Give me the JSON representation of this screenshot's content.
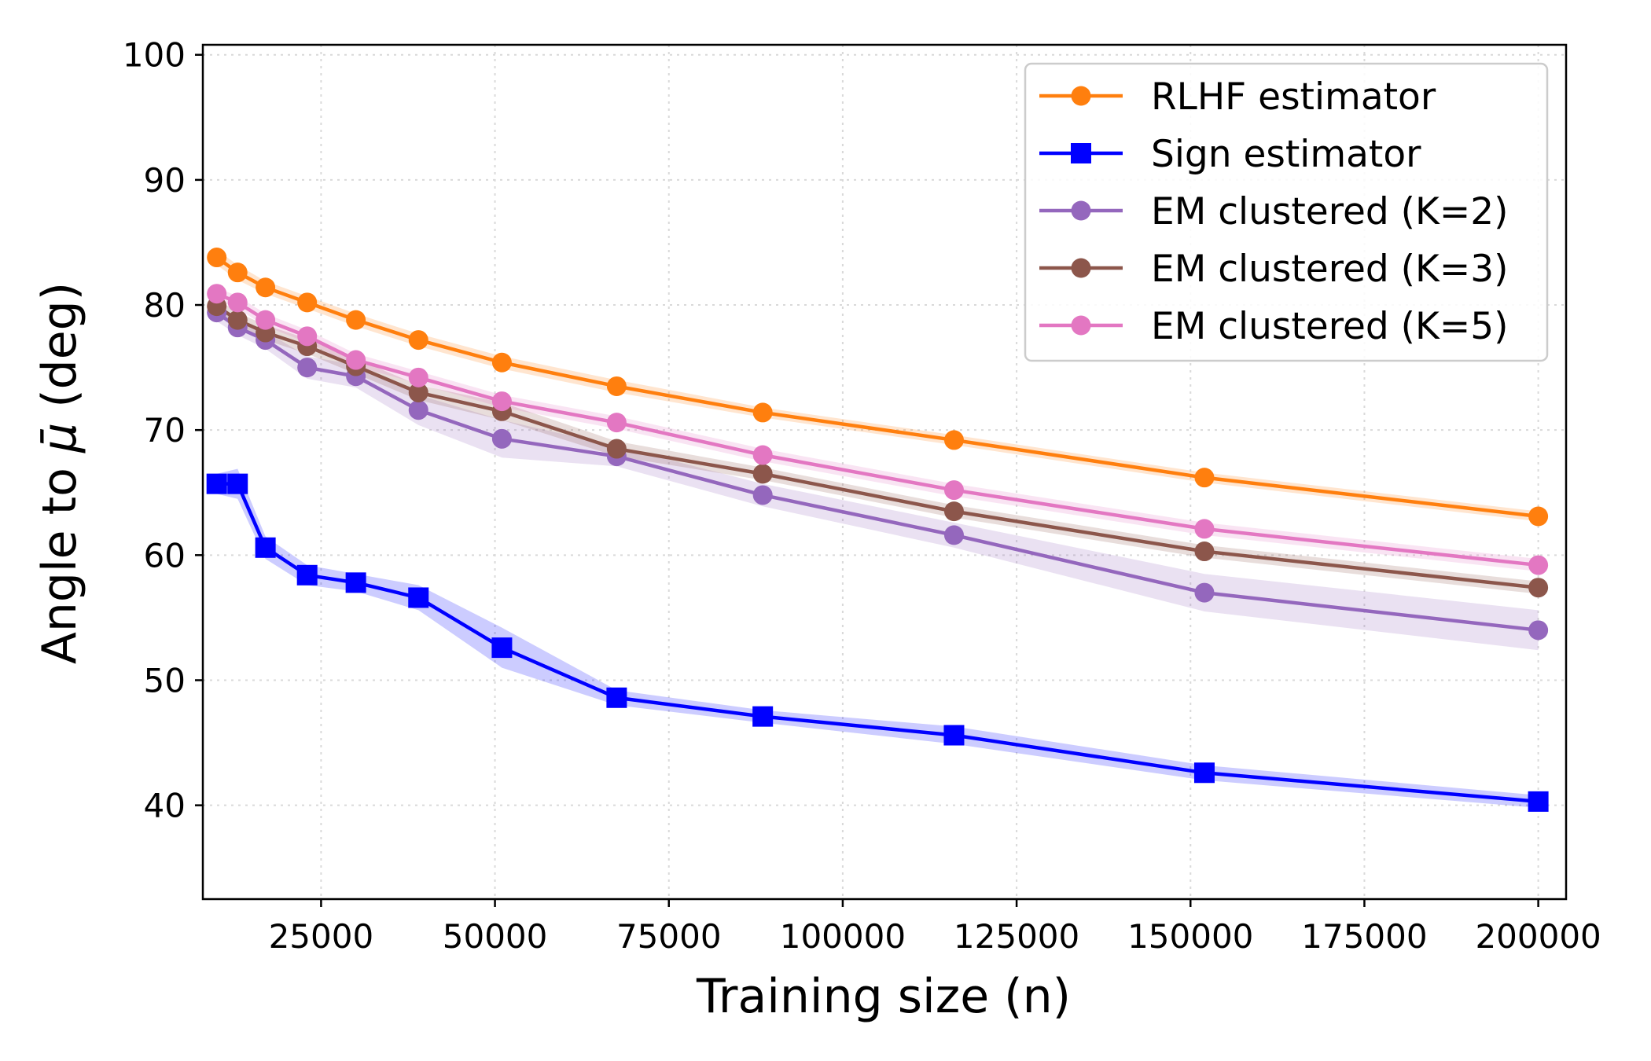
{
  "chart_data": {
    "type": "line",
    "title": "",
    "xlabel": "Training size (n)",
    "ylabel_prefix": "Angle to ",
    "ylabel_symbol": "μ̄",
    "ylabel_suffix": " (deg)",
    "xlim": [
      8000,
      204000
    ],
    "ylim": [
      32.5,
      100.8
    ],
    "xticks": [
      25000,
      50000,
      75000,
      100000,
      125000,
      150000,
      175000,
      200000
    ],
    "yticks": [
      40,
      50,
      60,
      70,
      80,
      90,
      100
    ],
    "grid": true,
    "legend_position": "top-right",
    "x": [
      10000,
      13000,
      17000,
      23000,
      30000,
      39000,
      51000,
      67500,
      88500,
      116000,
      152000,
      200000
    ],
    "series": [
      {
        "name": "RLHF estimator",
        "color": "#ff7f0e",
        "marker": "circle",
        "values": [
          83.8,
          82.6,
          81.4,
          80.2,
          78.8,
          77.2,
          75.4,
          73.5,
          71.4,
          69.2,
          66.2,
          63.1
        ],
        "band": [
          0.6,
          0.6,
          0.5,
          0.5,
          0.5,
          0.5,
          0.5,
          0.5,
          0.4,
          0.4,
          0.4,
          0.4
        ]
      },
      {
        "name": "Sign estimator",
        "color": "#0000ff",
        "marker": "square",
        "values": [
          65.7,
          65.7,
          60.6,
          58.4,
          57.8,
          56.6,
          52.6,
          48.6,
          47.1,
          45.6,
          42.6,
          40.3
        ],
        "band": [
          0.8,
          1.2,
          0.9,
          0.8,
          0.7,
          1.0,
          1.6,
          0.6,
          0.5,
          0.7,
          0.6,
          0.5
        ]
      },
      {
        "name": "EM clustered (K=2)",
        "color": "#9467bd",
        "marker": "circle",
        "values": [
          79.4,
          78.2,
          77.2,
          75.0,
          74.3,
          71.6,
          69.3,
          67.9,
          64.8,
          61.6,
          57.0,
          54.0
        ],
        "band": [
          0.7,
          0.6,
          0.7,
          0.9,
          0.9,
          1.2,
          1.5,
          0.8,
          0.9,
          1.0,
          1.5,
          1.6
        ]
      },
      {
        "name": "EM clustered (K=3)",
        "color": "#8c564b",
        "marker": "circle",
        "values": [
          79.9,
          78.8,
          77.8,
          76.7,
          75.1,
          73.0,
          71.5,
          68.5,
          66.5,
          63.5,
          60.3,
          57.4
        ],
        "band": [
          0.6,
          0.6,
          0.6,
          0.6,
          0.6,
          0.6,
          0.7,
          0.6,
          0.5,
          0.5,
          0.5,
          0.5
        ]
      },
      {
        "name": "EM clustered (K=5)",
        "color": "#e377c2",
        "marker": "circle",
        "values": [
          80.9,
          80.2,
          78.8,
          77.5,
          75.6,
          74.2,
          72.3,
          70.6,
          68.0,
          65.2,
          62.1,
          59.2
        ],
        "band": [
          0.5,
          0.5,
          0.5,
          0.5,
          0.5,
          0.5,
          0.5,
          0.5,
          0.5,
          0.5,
          0.5,
          0.5
        ]
      }
    ]
  }
}
